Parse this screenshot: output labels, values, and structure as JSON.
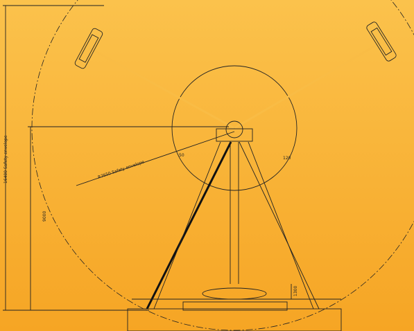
{
  "labels": {
    "envelope_height": "16400 Safety envelope",
    "pivot_height": "9000",
    "envelope_radius": "R7650 Safety envelope",
    "angle_left": "50",
    "angle_right": "120",
    "base_height": "1300"
  }
}
